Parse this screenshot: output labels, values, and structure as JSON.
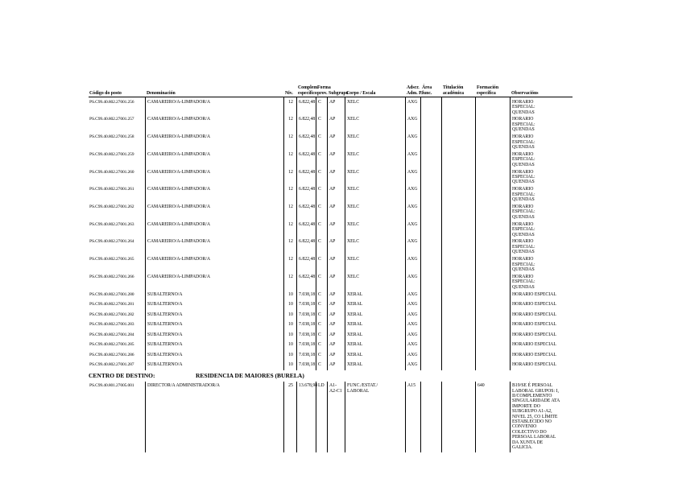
{
  "page": {
    "background": "#ffffff",
    "text_color": "#000000"
  },
  "table": {
    "columns": [
      {
        "key": "codigo",
        "label1": "",
        "label2": "Código do posto"
      },
      {
        "key": "denominacion",
        "label1": "",
        "label2": "Denominación"
      },
      {
        "key": "niv",
        "label1": "",
        "label2": "Niv."
      },
      {
        "key": "complem",
        "label1": "Complem.",
        "label2": "específico"
      },
      {
        "key": "forma",
        "label1": "Forma",
        "label2": "prov."
      },
      {
        "key": "subgrupo",
        "label1": "",
        "label2": "Subgrupo"
      },
      {
        "key": "corpo",
        "label1": "",
        "label2": "Corpo / Escala"
      },
      {
        "key": "adscr",
        "label1": "Adscr.",
        "label2": "Adm. P."
      },
      {
        "key": "area",
        "label1": "Área",
        "label2": "func."
      },
      {
        "key": "titulacion",
        "label1": "Titulación",
        "label2": "académica"
      },
      {
        "key": "formacion",
        "label1": "Formación",
        "label2": "específica"
      },
      {
        "key": "observacions",
        "label1": "",
        "label2": "Observacións"
      }
    ],
    "rows": [
      {
        "codigo": "PS.C99.40.802.27001.256",
        "denominacion": "CAMAREIRO/A-LIMPADOR/A",
        "niv": "12",
        "complem": "6.822,48",
        "forma": "C",
        "subgrupo": "AP",
        "corpo": "XELC",
        "adscr": "AXG",
        "area": "",
        "titulacion": "",
        "formacion": "",
        "observacions": "HORARIO ESPECIAL: QUENDAS"
      },
      {
        "codigo": "PS.C99.40.802.27001.257",
        "denominacion": "CAMAREIRO/A-LIMPADOR/A",
        "niv": "12",
        "complem": "6.822,48",
        "forma": "C",
        "subgrupo": "AP",
        "corpo": "XELC",
        "adscr": "AXG",
        "area": "",
        "titulacion": "",
        "formacion": "",
        "observacions": "HORARIO ESPECIAL: QUENDAS"
      },
      {
        "codigo": "PS.C99.40.802.27001.258",
        "denominacion": "CAMAREIRO/A-LIMPADOR/A",
        "niv": "12",
        "complem": "6.822,48",
        "forma": "C",
        "subgrupo": "AP",
        "corpo": "XELC",
        "adscr": "AXG",
        "area": "",
        "titulacion": "",
        "formacion": "",
        "observacions": "HORARIO ESPECIAL: QUENDAS"
      },
      {
        "codigo": "PS.C99.40.802.27001.259",
        "denominacion": "CAMAREIRO/A-LIMPADOR/A",
        "niv": "12",
        "complem": "6.822,48",
        "forma": "C",
        "subgrupo": "AP",
        "corpo": "XELC",
        "adscr": "AXG",
        "area": "",
        "titulacion": "",
        "formacion": "",
        "observacions": "HORARIO ESPECIAL: QUENDAS"
      },
      {
        "codigo": "PS.C99.40.802.27001.260",
        "denominacion": "CAMAREIRO/A-LIMPADOR/A",
        "niv": "12",
        "complem": "6.822,48",
        "forma": "C",
        "subgrupo": "AP",
        "corpo": "XELC",
        "adscr": "AXG",
        "area": "",
        "titulacion": "",
        "formacion": "",
        "observacions": "HORARIO ESPECIAL: QUENDAS"
      },
      {
        "codigo": "PS.C99.40.802.27001.261",
        "denominacion": "CAMAREIRO/A-LIMPADOR/A",
        "niv": "12",
        "complem": "6.822,48",
        "forma": "C",
        "subgrupo": "AP",
        "corpo": "XELC",
        "adscr": "AXG",
        "area": "",
        "titulacion": "",
        "formacion": "",
        "observacions": "HORARIO ESPECIAL: QUENDAS"
      },
      {
        "codigo": "PS.C99.40.802.27001.262",
        "denominacion": "CAMAREIRO/A-LIMPADOR/A",
        "niv": "12",
        "complem": "6.822,48",
        "forma": "C",
        "subgrupo": "AP",
        "corpo": "XELC",
        "adscr": "AXG",
        "area": "",
        "titulacion": "",
        "formacion": "",
        "observacions": "HORARIO ESPECIAL: QUENDAS"
      },
      {
        "codigo": "PS.C99.40.802.27001.263",
        "denominacion": "CAMAREIRO/A-LIMPADOR/A",
        "niv": "12",
        "complem": "6.822,48",
        "forma": "C",
        "subgrupo": "AP",
        "corpo": "XELC",
        "adscr": "AXG",
        "area": "",
        "titulacion": "",
        "formacion": "",
        "observacions": "HORARIO ESPECIAL: QUENDAS"
      },
      {
        "codigo": "PS.C99.40.802.27001.264",
        "denominacion": "CAMAREIRO/A-LIMPADOR/A",
        "niv": "12",
        "complem": "6.822,48",
        "forma": "C",
        "subgrupo": "AP",
        "corpo": "XELC",
        "adscr": "AXG",
        "area": "",
        "titulacion": "",
        "formacion": "",
        "observacions": "HORARIO ESPECIAL: QUENDAS"
      },
      {
        "codigo": "PS.C99.40.802.27001.265",
        "denominacion": "CAMAREIRO/A-LIMPADOR/A",
        "niv": "12",
        "complem": "6.822,48",
        "forma": "C",
        "subgrupo": "AP",
        "corpo": "XELC",
        "adscr": "AXG",
        "area": "",
        "titulacion": "",
        "formacion": "",
        "observacions": "HORARIO ESPECIAL: QUENDAS"
      },
      {
        "codigo": "PS.C99.40.802.27001.266",
        "denominacion": "CAMAREIRO/A-LIMPADOR/A",
        "niv": "12",
        "complem": "6.822,48",
        "forma": "C",
        "subgrupo": "AP",
        "corpo": "XELC",
        "adscr": "AXG",
        "area": "",
        "titulacion": "",
        "formacion": "",
        "observacions": "HORARIO ESPECIAL: QUENDAS"
      },
      {
        "codigo": "PS.C99.40.802.27001.280",
        "denominacion": "SUBALTERNO/A",
        "niv": "10",
        "complem": "7.038,18",
        "forma": "C",
        "subgrupo": "AP",
        "corpo": "XERAL",
        "adscr": "AXG",
        "area": "",
        "titulacion": "",
        "formacion": "",
        "observacions": "HORARIO ESPECIAL"
      },
      {
        "codigo": "PS.C99.40.802.27001.281",
        "denominacion": "SUBALTERNO/A",
        "niv": "10",
        "complem": "7.038,18",
        "forma": "C",
        "subgrupo": "AP",
        "corpo": "XERAL",
        "adscr": "AXG",
        "area": "",
        "titulacion": "",
        "formacion": "",
        "observacions": "HORARIO ESPECIAL"
      },
      {
        "codigo": "PS.C99.40.802.27001.282",
        "denominacion": "SUBALTERNO/A",
        "niv": "10",
        "complem": "7.038,18",
        "forma": "C",
        "subgrupo": "AP",
        "corpo": "XERAL",
        "adscr": "AXG",
        "area": "",
        "titulacion": "",
        "formacion": "",
        "observacions": "HORARIO ESPECIAL"
      },
      {
        "codigo": "PS.C99.40.802.27001.283",
        "denominacion": "SUBALTERNO/A",
        "niv": "10",
        "complem": "7.038,18",
        "forma": "C",
        "subgrupo": "AP",
        "corpo": "XERAL",
        "adscr": "AXG",
        "area": "",
        "titulacion": "",
        "formacion": "",
        "observacions": "HORARIO ESPECIAL"
      },
      {
        "codigo": "PS.C99.40.802.27001.284",
        "denominacion": "SUBALTERNO/A",
        "niv": "10",
        "complem": "7.038,18",
        "forma": "C",
        "subgrupo": "AP",
        "corpo": "XERAL",
        "adscr": "AXG",
        "area": "",
        "titulacion": "",
        "formacion": "",
        "observacions": "HORARIO ESPECIAL"
      },
      {
        "codigo": "PS.C99.40.802.27001.285",
        "denominacion": "SUBALTERNO/A",
        "niv": "10",
        "complem": "7.038,18",
        "forma": "C",
        "subgrupo": "AP",
        "corpo": "XERAL",
        "adscr": "AXG",
        "area": "",
        "titulacion": "",
        "formacion": "",
        "observacions": "HORARIO ESPECIAL"
      },
      {
        "codigo": "PS.C99.40.802.27001.286",
        "denominacion": "SUBALTERNO/A",
        "niv": "10",
        "complem": "7.038,18",
        "forma": "C",
        "subgrupo": "AP",
        "corpo": "XERAL",
        "adscr": "AXG",
        "area": "",
        "titulacion": "",
        "formacion": "",
        "observacions": "HORARIO ESPECIAL"
      },
      {
        "codigo": "PS.C99.40.802.27001.287",
        "denominacion": "SUBALTERNO/A",
        "niv": "10",
        "complem": "7.038,18",
        "forma": "C",
        "subgrupo": "AP",
        "corpo": "XERAL",
        "adscr": "AXG",
        "area": "",
        "titulacion": "",
        "formacion": "",
        "observacions": "HORARIO ESPECIAL"
      }
    ]
  },
  "centro": {
    "label": "CENTRO DE DESTINO:",
    "value": "RESIDENCIA DE MAIORES (BURELA)",
    "rows": [
      {
        "codigo": "PS.C99.40.801.27005.001",
        "denominacion": "DIRECTOR/A ADMINISTRADOR/A",
        "niv": "25",
        "complem": "13.678,98",
        "forma": "LD",
        "subgrupo": "A1-A2-C1",
        "corpo": "FUNC./ESTAT./ LABORAL",
        "adscr": "A15",
        "area": "",
        "titulacion": "",
        "formacion": "640",
        "observacions": "B19/SE É PERSOAL LABORAL GRUPOS: I, II/COMPLEMENTO SINGULARIDADE ATA IMPORTE DO SUBGRUPO A1-A2, NIVEL 25, CO LÍMITE ESTABLECIDO NO CONVENIO COLECTIVO DO PERSOAL LABORAL DA XUNTA DE GALICIA."
      }
    ]
  }
}
